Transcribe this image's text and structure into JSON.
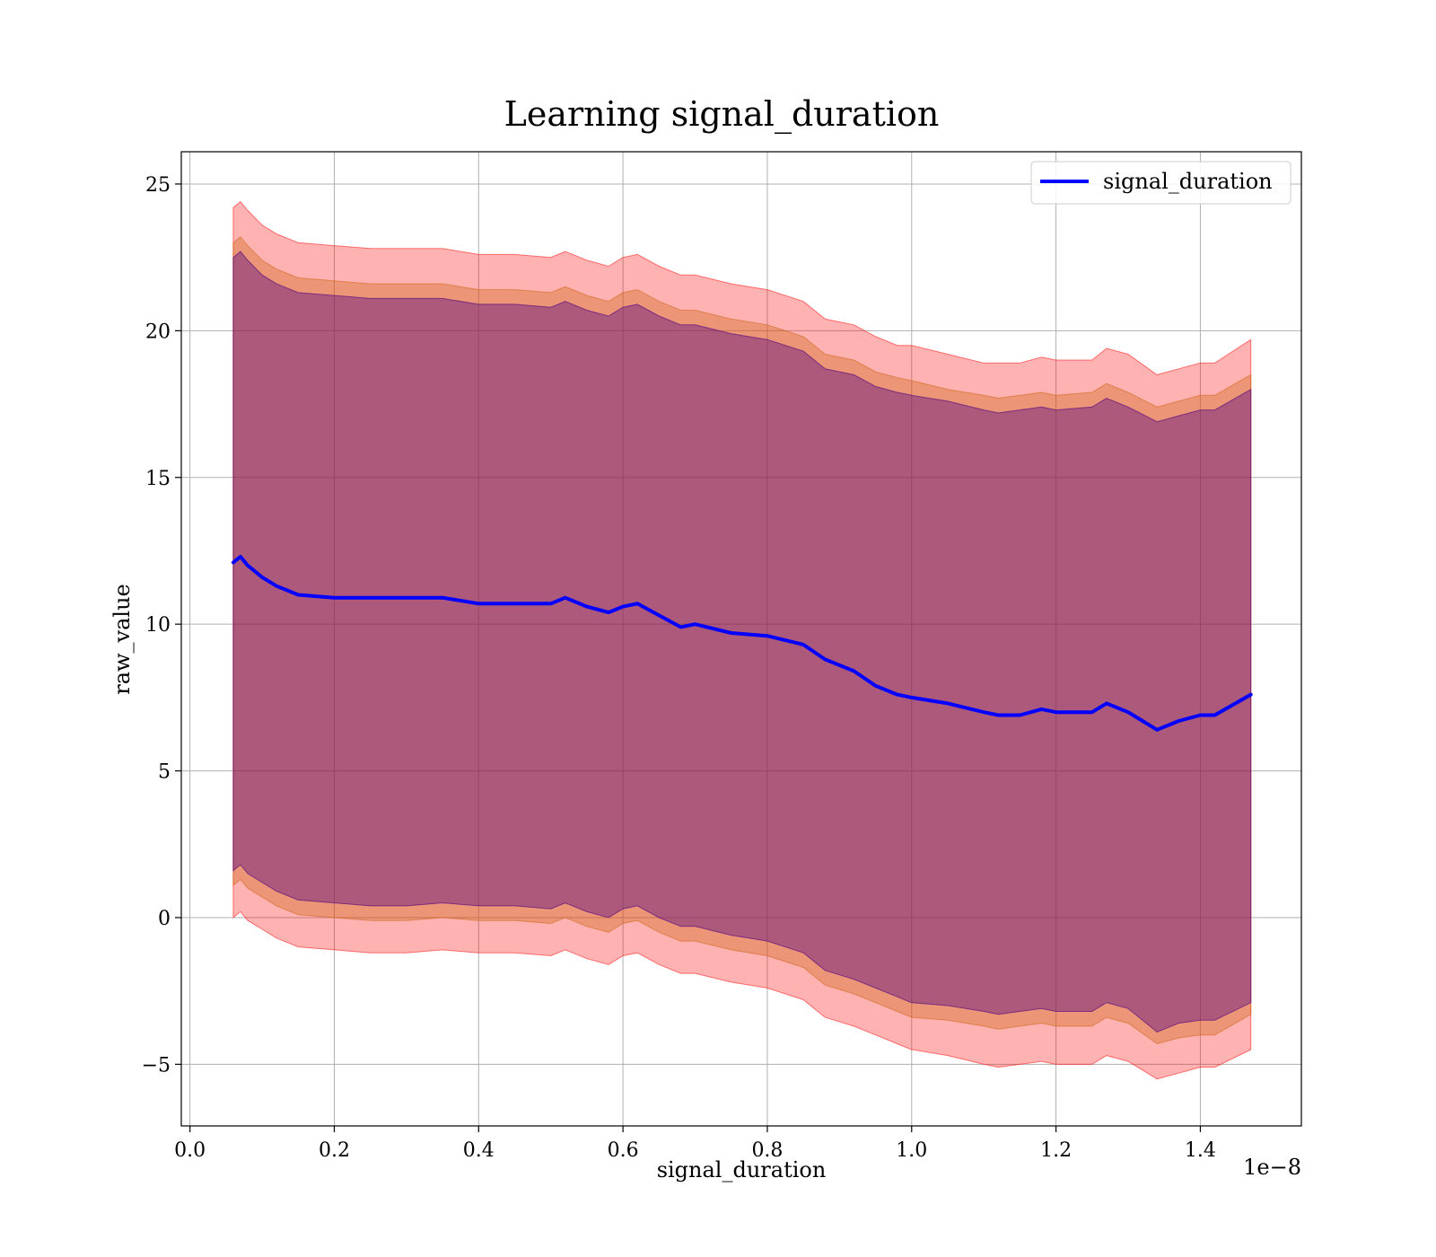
{
  "chart_data": {
    "type": "area",
    "title": "Learning signal_duration",
    "xlabel": "signal_duration",
    "ylabel": "raw_value",
    "x_offset_label": "1e−8",
    "xlim": [
      -0.012,
      1.54
    ],
    "ylim": [
      -7.1,
      26.1
    ],
    "x_ticks": [
      0.0,
      0.2,
      0.4,
      0.6,
      0.8,
      1.0,
      1.2,
      1.4
    ],
    "x_tick_labels": [
      "0.0",
      "0.2",
      "0.4",
      "0.6",
      "0.8",
      "1.0",
      "1.2",
      "1.4"
    ],
    "y_ticks": [
      -5,
      0,
      5,
      10,
      15,
      20,
      25
    ],
    "y_tick_labels": [
      "−5",
      "0",
      "5",
      "10",
      "15",
      "20",
      "25"
    ],
    "grid": true,
    "legend": {
      "position": "top-right",
      "entries": [
        "signal_duration"
      ]
    },
    "x": [
      0.06,
      0.07,
      0.08,
      0.1,
      0.12,
      0.15,
      0.2,
      0.25,
      0.3,
      0.35,
      0.4,
      0.45,
      0.5,
      0.52,
      0.55,
      0.58,
      0.6,
      0.62,
      0.65,
      0.68,
      0.7,
      0.75,
      0.8,
      0.85,
      0.88,
      0.92,
      0.95,
      0.98,
      1.0,
      1.05,
      1.1,
      1.12,
      1.15,
      1.18,
      1.2,
      1.25,
      1.27,
      1.3,
      1.34,
      1.37,
      1.4,
      1.42,
      1.47
    ],
    "series": [
      {
        "name": "signal_duration",
        "color": "#0000ff",
        "values": [
          12.1,
          12.3,
          12.0,
          11.6,
          11.3,
          11.0,
          10.9,
          10.9,
          10.9,
          10.9,
          10.7,
          10.7,
          10.7,
          10.9,
          10.6,
          10.4,
          10.6,
          10.7,
          10.3,
          9.9,
          10.0,
          9.7,
          9.6,
          9.3,
          8.8,
          8.4,
          7.9,
          7.6,
          7.5,
          7.3,
          7.0,
          6.9,
          6.9,
          7.1,
          7.0,
          7.0,
          7.3,
          7.0,
          6.4,
          6.7,
          6.9,
          6.9,
          7.6
        ]
      }
    ],
    "bands": [
      {
        "color": "#ff0000",
        "opacity": 0.3,
        "upper": [
          24.2,
          24.4,
          24.1,
          23.6,
          23.3,
          23.0,
          22.9,
          22.8,
          22.8,
          22.8,
          22.6,
          22.6,
          22.5,
          22.7,
          22.4,
          22.2,
          22.5,
          22.6,
          22.2,
          21.9,
          21.9,
          21.6,
          21.4,
          21.0,
          20.4,
          20.2,
          19.8,
          19.5,
          19.5,
          19.2,
          18.9,
          18.9,
          18.9,
          19.1,
          19.0,
          19.0,
          19.4,
          19.2,
          18.5,
          18.7,
          18.9,
          18.9,
          19.7
        ],
        "lower": [
          0.0,
          0.2,
          -0.1,
          -0.4,
          -0.7,
          -1.0,
          -1.1,
          -1.2,
          -1.2,
          -1.1,
          -1.2,
          -1.2,
          -1.3,
          -1.1,
          -1.4,
          -1.6,
          -1.3,
          -1.2,
          -1.6,
          -1.9,
          -1.9,
          -2.2,
          -2.4,
          -2.8,
          -3.4,
          -3.7,
          -4.0,
          -4.3,
          -4.5,
          -4.7,
          -5.0,
          -5.1,
          -5.0,
          -4.9,
          -5.0,
          -5.0,
          -4.7,
          -4.9,
          -5.5,
          -5.3,
          -5.1,
          -5.1,
          -4.5
        ]
      },
      {
        "color": "#d2691e",
        "opacity": 0.4,
        "upper": [
          23.0,
          23.2,
          22.9,
          22.4,
          22.1,
          21.8,
          21.7,
          21.6,
          21.6,
          21.6,
          21.4,
          21.4,
          21.3,
          21.5,
          21.2,
          21.0,
          21.3,
          21.4,
          21.0,
          20.7,
          20.7,
          20.4,
          20.2,
          19.8,
          19.2,
          19.0,
          18.6,
          18.4,
          18.3,
          18.0,
          17.8,
          17.7,
          17.8,
          17.9,
          17.8,
          17.9,
          18.2,
          17.9,
          17.4,
          17.6,
          17.8,
          17.8,
          18.5
        ],
        "lower": [
          1.1,
          1.3,
          1.0,
          0.7,
          0.4,
          0.1,
          0.0,
          -0.1,
          -0.1,
          0.0,
          -0.1,
          -0.1,
          -0.2,
          0.0,
          -0.3,
          -0.5,
          -0.2,
          -0.1,
          -0.5,
          -0.8,
          -0.8,
          -1.1,
          -1.3,
          -1.7,
          -2.3,
          -2.6,
          -2.9,
          -3.2,
          -3.4,
          -3.5,
          -3.7,
          -3.8,
          -3.7,
          -3.6,
          -3.7,
          -3.7,
          -3.4,
          -3.6,
          -4.3,
          -4.1,
          -4.0,
          -4.0,
          -3.3
        ]
      },
      {
        "color": "#4b0082",
        "opacity": 0.4,
        "upper": [
          22.5,
          22.7,
          22.4,
          21.9,
          21.6,
          21.3,
          21.2,
          21.1,
          21.1,
          21.1,
          20.9,
          20.9,
          20.8,
          21.0,
          20.7,
          20.5,
          20.8,
          20.9,
          20.5,
          20.2,
          20.2,
          19.9,
          19.7,
          19.3,
          18.7,
          18.5,
          18.1,
          17.9,
          17.8,
          17.6,
          17.3,
          17.2,
          17.3,
          17.4,
          17.3,
          17.4,
          17.7,
          17.4,
          16.9,
          17.1,
          17.3,
          17.3,
          18.0
        ],
        "lower": [
          1.6,
          1.8,
          1.5,
          1.2,
          0.9,
          0.6,
          0.5,
          0.4,
          0.4,
          0.5,
          0.4,
          0.4,
          0.3,
          0.5,
          0.2,
          0.0,
          0.3,
          0.4,
          0.0,
          -0.3,
          -0.3,
          -0.6,
          -0.8,
          -1.2,
          -1.8,
          -2.1,
          -2.4,
          -2.7,
          -2.9,
          -3.0,
          -3.2,
          -3.3,
          -3.2,
          -3.1,
          -3.2,
          -3.2,
          -2.9,
          -3.1,
          -3.9,
          -3.6,
          -3.5,
          -3.5,
          -2.9
        ]
      }
    ]
  }
}
